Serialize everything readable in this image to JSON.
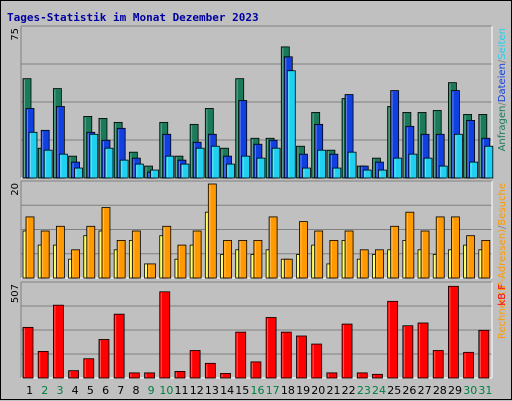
{
  "chart_data": {
    "type": "bar",
    "title": "Tages-Statistik im Monat Dezember 2023",
    "categories": [
      "1",
      "2",
      "3",
      "4",
      "5",
      "6",
      "7",
      "8",
      "9",
      "10",
      "11",
      "12",
      "13",
      "14",
      "15",
      "16",
      "17",
      "18",
      "19",
      "20",
      "21",
      "22",
      "23",
      "24",
      "25",
      "26",
      "27",
      "28",
      "29",
      "30",
      "31"
    ],
    "weekend_days": [
      "2",
      "3",
      "9",
      "10",
      "16",
      "17",
      "23",
      "24",
      "30",
      "31"
    ],
    "colors": {
      "anfragen": "#1a7a5a",
      "dateien": "#1040e0",
      "seiten": "#20d0f0",
      "rechner": "#ffff40",
      "besuche": "#ff9900",
      "kbf": "#ff0000",
      "weekday_label": "#000000",
      "weekend_label": "#008040",
      "title_color": "#0000a0"
    },
    "panels": [
      {
        "name": "requests",
        "ymax_label": "75",
        "ymax": 75,
        "legend": [
          {
            "text": "Anfragen",
            "color": "#1a7a5a"
          },
          {
            "text": "/",
            "color": "#808080"
          },
          {
            "text": "Dateien",
            "color": "#1040e0"
          },
          {
            "text": "/",
            "color": "#808080"
          },
          {
            "text": "Seiten",
            "color": "#20d0f0"
          }
        ],
        "series": [
          {
            "name": "Anfragen",
            "key": "anfragen",
            "values": [
              50,
              15,
              45,
              11,
              31,
              30,
              28,
              13,
              6,
              28,
              11,
              27,
              35,
              15,
              50,
              20,
              20,
              66,
              16,
              33,
              14,
              40,
              6,
              10,
              36,
              33,
              33,
              34,
              48,
              32,
              32
            ]
          },
          {
            "name": "Dateien",
            "key": "dateien",
            "values": [
              35,
              24,
              36,
              8,
              23,
              19,
              25,
              10,
              3,
              22,
              9,
              18,
              22,
              11,
              39,
              17,
              19,
              61,
              12,
              27,
              12,
              42,
              6,
              8,
              44,
              26,
              22,
              22,
              44,
              29,
              20
            ]
          },
          {
            "name": "Seiten",
            "key": "seiten",
            "values": [
              23,
              14,
              12,
              5,
              22,
              15,
              9,
              7,
              4,
              11,
              7,
              15,
              16,
              7,
              11,
              10,
              15,
              54,
              5,
              14,
              5,
              13,
              4,
              4,
              10,
              12,
              10,
              6,
              22,
              8,
              16
            ]
          }
        ]
      },
      {
        "name": "visits",
        "ymax_label": "20",
        "ymax": 20,
        "legend": [
          {
            "text": "Rechner",
            "color": "#ff9900"
          },
          {
            "text": " (IP-Adressen)",
            "color": "#ff9900"
          },
          {
            "text": "/",
            "color": "#808080"
          },
          {
            "text": "Besuche",
            "color": "#ff9900"
          }
        ],
        "series": [
          {
            "name": "Rechner",
            "key": "rechner",
            "values": [
              10,
              7,
              7,
              4,
              9,
              10,
              6,
              8,
              3,
              9,
              4,
              7,
              14,
              5,
              6,
              5,
              6,
              4,
              5,
              7,
              3,
              8,
              4,
              5,
              6,
              8,
              6,
              5,
              6,
              7,
              6
            ]
          },
          {
            "name": "Besuche",
            "key": "besuche",
            "values": [
              13,
              10,
              11,
              6,
              11,
              15,
              8,
              10,
              3,
              11,
              7,
              10,
              20,
              8,
              8,
              8,
              13,
              4,
              12,
              10,
              8,
              10,
              6,
              6,
              11,
              14,
              10,
              13,
              13,
              9,
              8
            ]
          }
        ]
      },
      {
        "name": "kbytes",
        "ymax_label": "507",
        "ymax": 507,
        "legend": [
          {
            "text": "kB F",
            "color": "#ff0000"
          }
        ],
        "series": [
          {
            "name": "kB F",
            "key": "kbf",
            "values": [
              276,
              145,
              397,
              40,
              105,
              210,
              348,
              28,
              28,
              470,
              36,
              150,
              80,
              25,
              250,
              88,
              330,
              250,
              229,
              185,
              28,
              294,
              28,
              20,
              418,
              285,
              300,
              150,
              500,
              140,
              260
            ]
          }
        ]
      }
    ]
  }
}
